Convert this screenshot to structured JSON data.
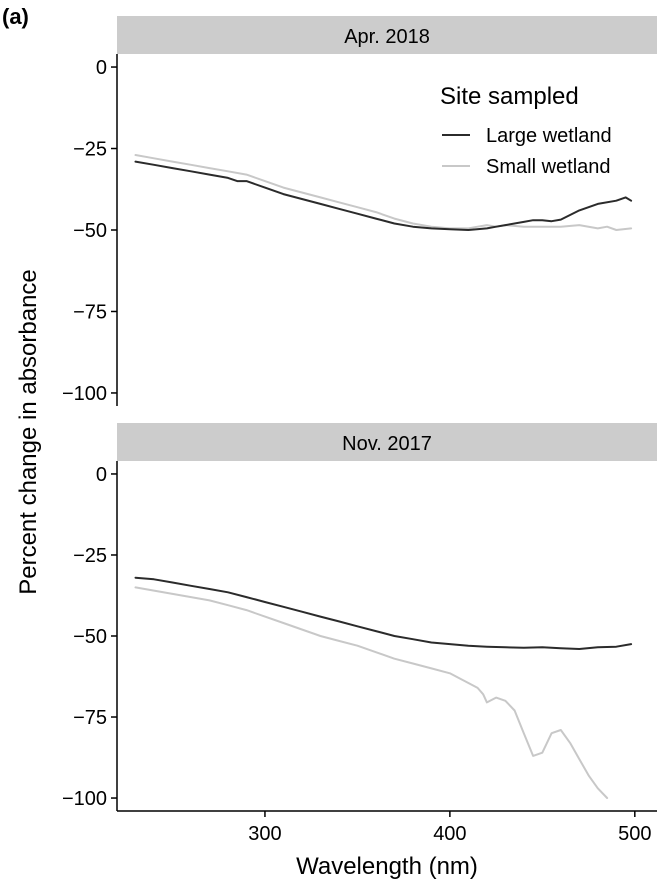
{
  "panel_label": "(a)",
  "colors": {
    "large": "#2b2b2b",
    "small": "#c8c8c8",
    "strip": "#cccccc",
    "axis": "#000000"
  },
  "chart_data": {
    "type": "line",
    "xlabel": "Wavelength (nm)",
    "ylabel": "Percent change in absorbance",
    "xlim": [
      220,
      512
    ],
    "ylim": [
      -104,
      4
    ],
    "x_ticks": [
      300,
      400,
      500
    ],
    "y_ticks": [
      0,
      -25,
      -50,
      -75,
      -100
    ],
    "grid": false,
    "legend": {
      "title": "Site sampled",
      "position": "top-right",
      "entries": [
        "Large wetland",
        "Small wetland"
      ]
    },
    "panels": [
      {
        "strip": "Apr. 2018",
        "series": [
          {
            "name": "Large wetland",
            "x": [
              230,
              240,
              250,
              260,
              270,
              280,
              285,
              290,
              300,
              310,
              320,
              330,
              340,
              350,
              360,
              370,
              380,
              390,
              400,
              410,
              420,
              425,
              430,
              440,
              445,
              450,
              455,
              460,
              470,
              480,
              490,
              495,
              498
            ],
            "y": [
              -29,
              -30,
              -31,
              -32,
              -33,
              -34,
              -35,
              -35,
              -37,
              -39,
              -40.5,
              -42,
              -43.5,
              -45,
              -46.5,
              -48,
              -49,
              -49.5,
              -49.8,
              -50,
              -49.5,
              -49,
              -48.5,
              -47.5,
              -47,
              -47,
              -47.3,
              -46.8,
              -44,
              -42,
              -41,
              -40,
              -41
            ]
          },
          {
            "name": "Small wetland",
            "x": [
              230,
              240,
              250,
              260,
              270,
              280,
              290,
              300,
              310,
              320,
              330,
              340,
              350,
              360,
              370,
              380,
              390,
              400,
              410,
              415,
              420,
              425,
              430,
              440,
              450,
              460,
              470,
              480,
              485,
              490,
              498
            ],
            "y": [
              -27,
              -28,
              -29,
              -30,
              -31,
              -32,
              -33,
              -35,
              -37,
              -38.5,
              -40,
              -41.5,
              -43,
              -44.5,
              -46.5,
              -48,
              -49,
              -49.5,
              -49.5,
              -49,
              -48.5,
              -49,
              -48.5,
              -49,
              -49,
              -49,
              -48.5,
              -49.5,
              -49,
              -50,
              -49.5
            ]
          }
        ]
      },
      {
        "strip": "Nov. 2017",
        "series": [
          {
            "name": "Large wetland",
            "x": [
              230,
              240,
              250,
              260,
              270,
              280,
              290,
              300,
              310,
              320,
              330,
              340,
              350,
              360,
              370,
              380,
              390,
              400,
              410,
              420,
              430,
              440,
              450,
              460,
              470,
              480,
              490,
              498
            ],
            "y": [
              -32,
              -32.5,
              -33.5,
              -34.5,
              -35.5,
              -36.5,
              -38,
              -39.5,
              -41,
              -42.5,
              -44,
              -45.5,
              -47,
              -48.5,
              -50,
              -51,
              -52,
              -52.5,
              -53,
              -53.3,
              -53.5,
              -53.6,
              -53.5,
              -53.8,
              -54,
              -53.5,
              -53.3,
              -52.5
            ]
          },
          {
            "name": "Small wetland",
            "x": [
              230,
              240,
              250,
              260,
              270,
              280,
              290,
              300,
              310,
              320,
              330,
              340,
              350,
              360,
              370,
              380,
              390,
              400,
              405,
              410,
              415,
              418,
              420,
              425,
              430,
              435,
              440,
              445,
              450,
              455,
              460,
              465,
              470,
              475,
              480,
              485
            ],
            "y": [
              -35,
              -36,
              -37,
              -38,
              -39,
              -40.5,
              -42,
              -44,
              -46,
              -48,
              -50,
              -51.5,
              -53,
              -55,
              -57,
              -58.5,
              -60,
              -61.5,
              -63,
              -64.5,
              -66,
              -68,
              -70.5,
              -69,
              -70,
              -73,
              -80,
              -87,
              -86,
              -80,
              -79,
              -83,
              -88,
              -93,
              -97,
              -100
            ]
          }
        ]
      }
    ]
  }
}
